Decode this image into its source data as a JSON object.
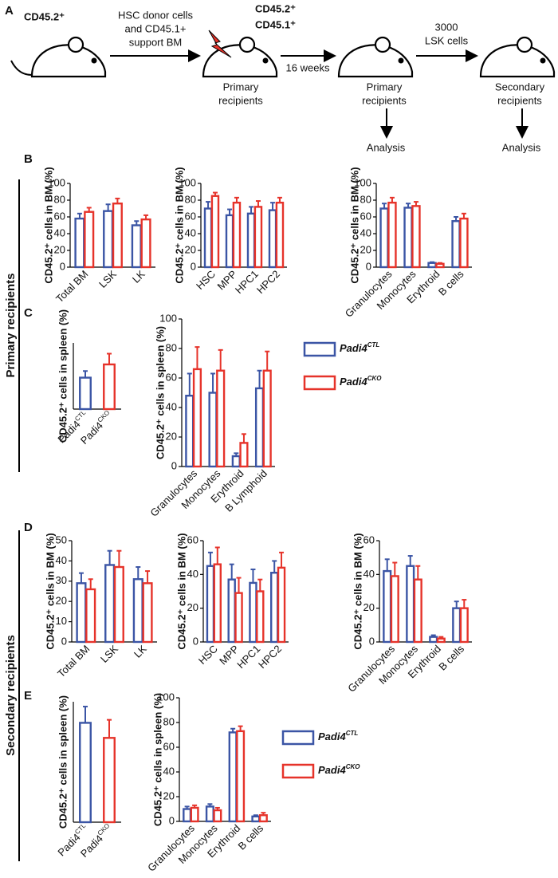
{
  "panel_labels": [
    "A",
    "B",
    "C",
    "D",
    "E"
  ],
  "row_labels": [
    "Primary recipients",
    "Secondary recipients"
  ],
  "schematic": {
    "donor": "CD45.2⁺",
    "arrow1": [
      "HSC donor cells",
      "and CD45.1+",
      "support BM"
    ],
    "recipient_top": [
      "CD45.2⁺",
      "CD45.1⁺"
    ],
    "recipient_label": [
      "Primary",
      "recipients"
    ],
    "arrow2": "16 weeks",
    "primary_label": [
      "Primary",
      "recipients"
    ],
    "arrow3": [
      "3000",
      "LSK cells"
    ],
    "secondary_label": [
      "Secondary",
      "recipients"
    ],
    "analysis": [
      "Analysis",
      "Analysis"
    ]
  },
  "chart_data": [
    {
      "type": "bar",
      "ylabel": "CD45.2⁺ cells in BM (%)",
      "categories": [
        "Total BM",
        "LSK",
        "LK"
      ],
      "ylim": [
        0,
        100
      ],
      "yticks": [
        0,
        20,
        40,
        60,
        80,
        100
      ],
      "series": [
        {
          "color": "#3b55a5",
          "values": [
            58,
            67,
            50
          ],
          "errors": [
            6,
            8,
            5
          ]
        },
        {
          "color": "#e6332a",
          "values": [
            66,
            76,
            57
          ],
          "errors": [
            5,
            6,
            5
          ]
        }
      ]
    },
    {
      "type": "bar",
      "ylabel": "CD45.2⁺ cells in BM (%)",
      "categories": [
        "HSC",
        "MPP",
        "HPC1",
        "HPC2"
      ],
      "ylim": [
        0,
        100
      ],
      "yticks": [
        0,
        20,
        40,
        60,
        80,
        100
      ],
      "series": [
        {
          "color": "#3b55a5",
          "values": [
            70,
            62,
            64,
            68
          ],
          "errors": [
            8,
            7,
            8,
            9
          ]
        },
        {
          "color": "#e6332a",
          "values": [
            85,
            77,
            72,
            77
          ],
          "errors": [
            4,
            6,
            7,
            6
          ]
        }
      ]
    },
    {
      "type": "bar",
      "ylabel": "CD45.2⁺ cells in BM (%)",
      "categories": [
        "Granulocytes",
        "Monocytes",
        "Erythroid",
        "B cells"
      ],
      "ylim": [
        0,
        100
      ],
      "yticks": [
        0,
        20,
        40,
        60,
        80,
        100
      ],
      "series": [
        {
          "color": "#3b55a5",
          "values": [
            70,
            71,
            5,
            55
          ],
          "errors": [
            6,
            5,
            1,
            5
          ]
        },
        {
          "color": "#e6332a",
          "values": [
            77,
            73,
            4,
            58
          ],
          "errors": [
            6,
            5,
            1,
            6
          ]
        }
      ]
    },
    {
      "type": "bar",
      "ylabel": "CD45.2⁺ cells in spleen (%)",
      "categories": [
        "Padi4",
        "Padi4"
      ],
      "category_superscripts": [
        "CTL",
        "CKO"
      ],
      "ylim": [
        0,
        80
      ],
      "values": [
        38,
        54
      ],
      "errors": [
        8,
        13
      ],
      "colors": [
        "#3b55a5",
        "#e6332a"
      ]
    },
    {
      "type": "bar",
      "ylabel": "CD45.2⁺ cells in spleen (%)",
      "categories": [
        "Granulocytes",
        "Monocytes",
        "Erythroid",
        "B Lymphoid"
      ],
      "ylim": [
        0,
        100
      ],
      "yticks": [
        0,
        20,
        40,
        60,
        80,
        100
      ],
      "series": [
        {
          "name": "Padi4",
          "name_sup": "CTL",
          "color": "#3b55a5",
          "values": [
            48,
            50,
            7,
            53
          ],
          "errors": [
            15,
            13,
            2,
            12
          ]
        },
        {
          "name": "Padi4",
          "name_sup": "CKO",
          "color": "#e6332a",
          "values": [
            66,
            65,
            16,
            65
          ],
          "errors": [
            15,
            14,
            6,
            13
          ]
        }
      ]
    },
    {
      "type": "bar",
      "ylabel": "CD45.2⁺ cells in BM (%)",
      "categories": [
        "Total BM",
        "LSK",
        "LK"
      ],
      "ylim": [
        0,
        50
      ],
      "yticks": [
        0,
        10,
        20,
        30,
        40,
        50
      ],
      "series": [
        {
          "color": "#3b55a5",
          "values": [
            29,
            38,
            31
          ],
          "errors": [
            5,
            7,
            6
          ]
        },
        {
          "color": "#e6332a",
          "values": [
            26,
            37,
            29
          ],
          "errors": [
            5,
            8,
            6
          ]
        }
      ]
    },
    {
      "type": "bar",
      "ylabel": "CD45.2⁺ cells in BM (%)",
      "categories": [
        "HSC",
        "MPP",
        "HPC1",
        "HPC2"
      ],
      "ylim": [
        0,
        60
      ],
      "yticks": [
        0,
        20,
        40,
        60
      ],
      "series": [
        {
          "color": "#3b55a5",
          "values": [
            45,
            37,
            35,
            41
          ],
          "errors": [
            8,
            9,
            8,
            7
          ]
        },
        {
          "color": "#e6332a",
          "values": [
            46,
            29,
            30,
            44
          ],
          "errors": [
            10,
            9,
            7,
            9
          ]
        }
      ]
    },
    {
      "type": "bar",
      "ylabel": "CD45.2⁺ cells in BM (%)",
      "categories": [
        "Granulocytes",
        "Monocytes",
        "Erythroid",
        "B cells"
      ],
      "ylim": [
        0,
        60
      ],
      "yticks": [
        0,
        20,
        40,
        60
      ],
      "series": [
        {
          "color": "#3b55a5",
          "values": [
            42,
            45,
            3,
            20
          ],
          "errors": [
            7,
            6,
            1,
            4
          ]
        },
        {
          "color": "#e6332a",
          "values": [
            39,
            37,
            2,
            20
          ],
          "errors": [
            8,
            8,
            1,
            5
          ]
        }
      ]
    },
    {
      "type": "bar",
      "ylabel": "CD45.2⁺ cells in spleen (%)",
      "categories": [
        "Padi4",
        "Padi4"
      ],
      "category_superscripts": [
        "CTL",
        "CKO"
      ],
      "ylim": [
        0,
        20
      ],
      "values": [
        16.5,
        14
      ],
      "errors": [
        2.7,
        3
      ],
      "colors": [
        "#3b55a5",
        "#e6332a"
      ]
    },
    {
      "type": "bar",
      "ylabel": "CD45.2⁺ cells in spleen (%)",
      "categories": [
        "Granulocytes",
        "Monocytes",
        "Erythroid",
        "B cells"
      ],
      "ylim": [
        0,
        100
      ],
      "yticks": [
        0,
        20,
        40,
        60,
        80,
        100
      ],
      "series": [
        {
          "name": "Padi4",
          "name_sup": "CTL",
          "color": "#3b55a5",
          "values": [
            10,
            12,
            72,
            4
          ],
          "errors": [
            2,
            2,
            3,
            1
          ]
        },
        {
          "name": "Padi4",
          "name_sup": "CKO",
          "color": "#e6332a",
          "values": [
            11,
            9,
            73,
            5
          ],
          "errors": [
            2,
            2,
            4,
            2
          ]
        }
      ]
    }
  ]
}
